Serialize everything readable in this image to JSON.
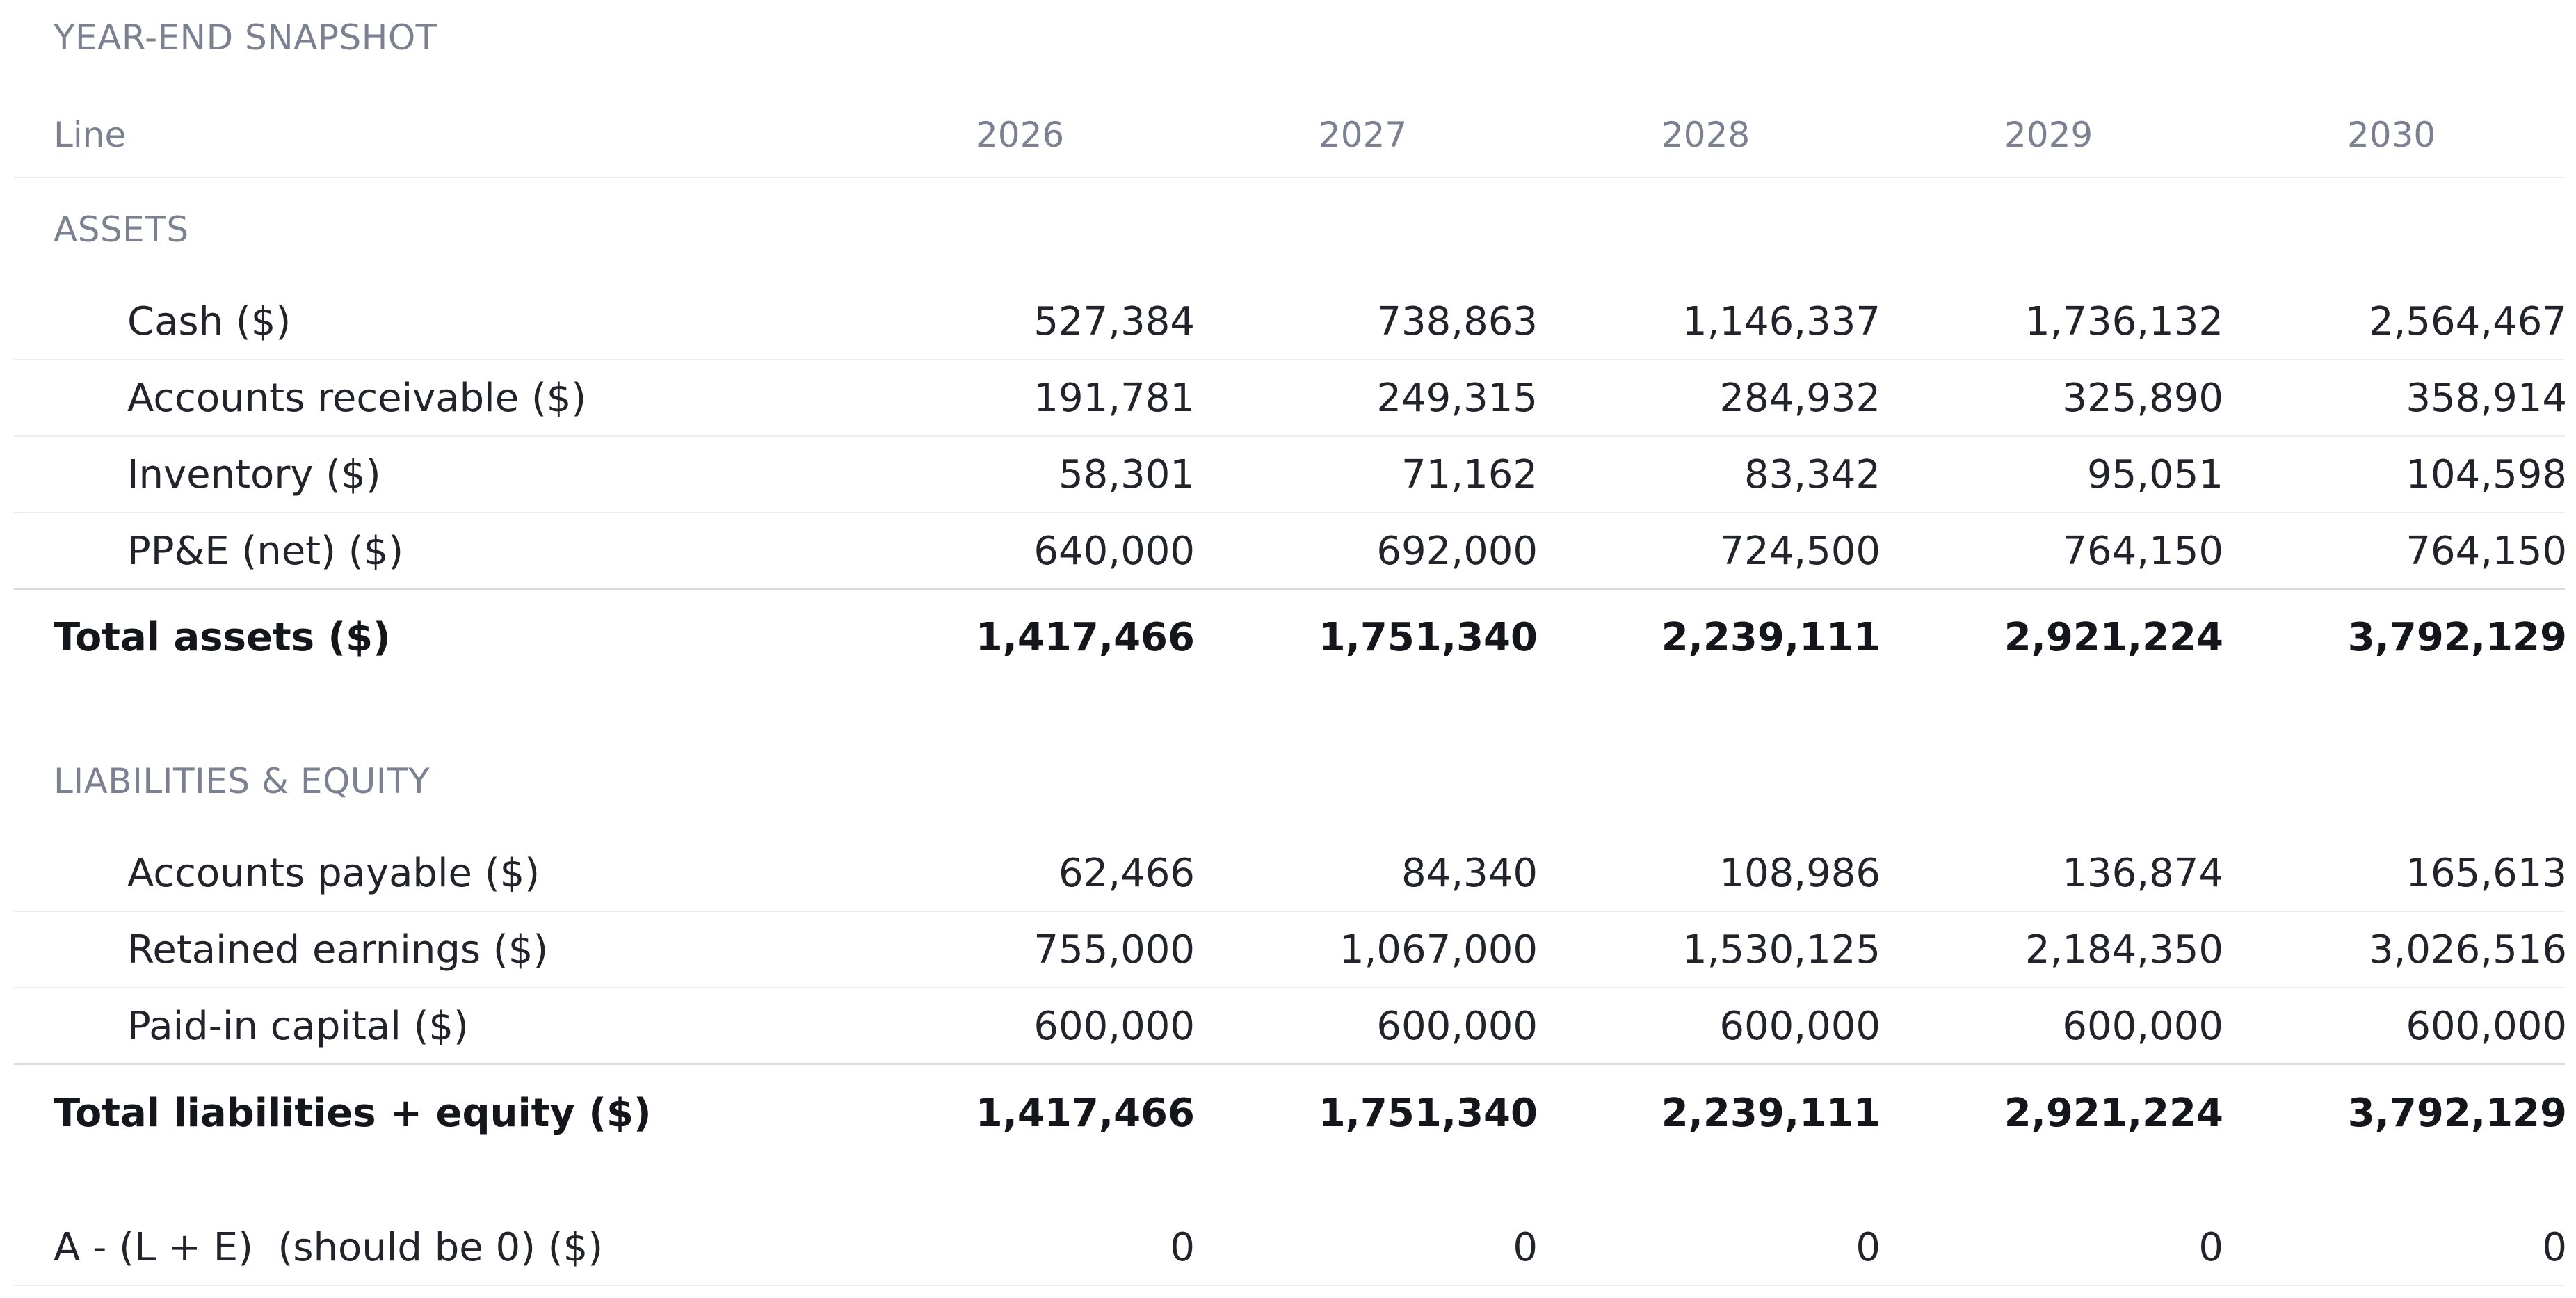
{
  "snapshot": {
    "title": "YEAR-END SNAPSHOT"
  },
  "header": {
    "line_label": "Line",
    "years": [
      "2026",
      "2027",
      "2028",
      "2029",
      "2030"
    ]
  },
  "assets": {
    "section_label": "ASSETS",
    "rows": [
      {
        "label": "Cash ($)",
        "values": [
          "527,384",
          "738,863",
          "1,146,337",
          "1,736,132",
          "2,564,467"
        ]
      },
      {
        "label": "Accounts receivable ($)",
        "values": [
          "191,781",
          "249,315",
          "284,932",
          "325,890",
          "358,914"
        ]
      },
      {
        "label": "Inventory ($)",
        "values": [
          "58,301",
          "71,162",
          "83,342",
          "95,051",
          "104,598"
        ]
      },
      {
        "label": "PP&E (net) ($)",
        "values": [
          "640,000",
          "692,000",
          "724,500",
          "764,150",
          "764,150"
        ]
      }
    ],
    "total": {
      "label": "Total assets ($)",
      "values": [
        "1,417,466",
        "1,751,340",
        "2,239,111",
        "2,921,224",
        "3,792,129"
      ]
    }
  },
  "liabilities_equity": {
    "section_label": "LIABILITIES & EQUITY",
    "rows": [
      {
        "label": "Accounts payable ($)",
        "values": [
          "62,466",
          "84,340",
          "108,986",
          "136,874",
          "165,613"
        ]
      },
      {
        "label": "Retained earnings ($)",
        "values": [
          "755,000",
          "1,067,000",
          "1,530,125",
          "2,184,350",
          "3,026,516"
        ]
      },
      {
        "label": "Paid-in capital ($)",
        "values": [
          "600,000",
          "600,000",
          "600,000",
          "600,000",
          "600,000"
        ]
      }
    ],
    "total": {
      "label": "Total liabilities + equity ($)",
      "values": [
        "1,417,466",
        "1,751,340",
        "2,239,111",
        "2,921,224",
        "3,792,129"
      ]
    }
  },
  "check": {
    "label": "A - (L + E)  (should be 0) ($)",
    "values": [
      "0",
      "0",
      "0",
      "0",
      "0"
    ]
  }
}
